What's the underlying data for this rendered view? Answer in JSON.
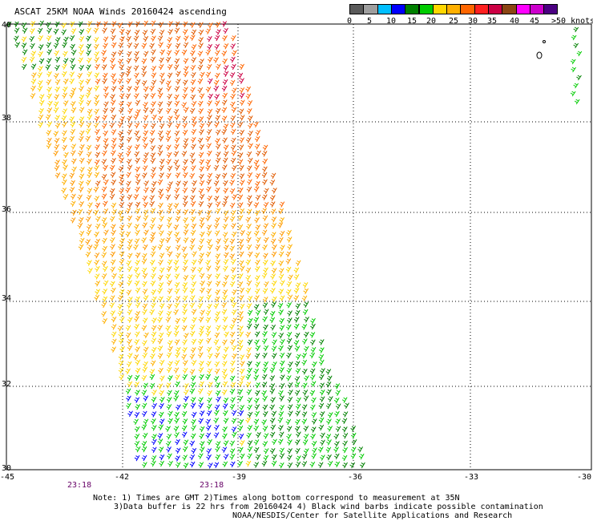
{
  "title": "ASCAT 25KM NOAA Winds 20160424 ascending",
  "colorbar": {
    "colors": [
      "#5a5a5a",
      "#9e9e9e",
      "#00bfff",
      "#0000ff",
      "#008000",
      "#00cc00",
      "#ffd700",
      "#ffb000",
      "#ff6600",
      "#ff2020",
      "#cc0044",
      "#8b4513",
      "#ff00ff",
      "#cc00cc",
      "#4b0082"
    ],
    "labels": [
      "0",
      "5",
      "10",
      "15",
      "20",
      "25",
      "30",
      "35",
      "40",
      "45",
      ">50 knots"
    ]
  },
  "axes": {
    "x_ticks": [
      "-45",
      "-42",
      "-39",
      "-36",
      "-33",
      "-30"
    ],
    "y_ticks": [
      "40",
      "38",
      "36",
      "34",
      "32",
      "30"
    ]
  },
  "times": [
    "23:18",
    "23:18"
  ],
  "notes": [
    "Note: 1) Times are GMT 2)Times along bottom correspond to measurement at 35N",
    "3)Data buffer is 22 hrs from 20160424 4) Black wind barbs indicate possible contamination",
    "NOAA/NESDIS/Center for Satellite Applications and Research"
  ]
}
